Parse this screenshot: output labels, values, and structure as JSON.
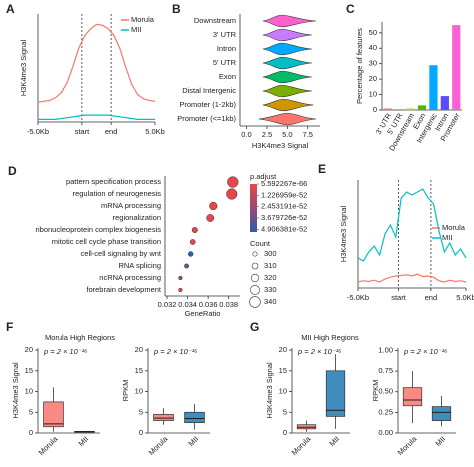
{
  "chart_data": [
    {
      "type": "line",
      "panel": "A",
      "ylabel": "H3K4me3 Signal",
      "x": [
        0,
        2,
        4,
        6,
        8,
        10,
        12,
        14,
        16,
        18,
        20,
        22,
        24,
        26,
        28,
        30,
        32,
        34,
        36,
        38,
        40
      ],
      "xlim": [
        0,
        40
      ],
      "xticks": [
        {
          "value": 0,
          "label": "-5.0Kb"
        },
        {
          "value": 15,
          "label": "start"
        },
        {
          "value": 25,
          "label": "end"
        },
        {
          "value": 40,
          "label": "5.0Kb"
        }
      ],
      "ylim": [
        0,
        12.5
      ],
      "legend": "upper right",
      "series": [
        {
          "name": "Morula",
          "color": "#f8766d",
          "values": [
            2.3,
            2.4,
            2.5,
            2.8,
            3.4,
            4.6,
            6.5,
            8.6,
            10,
            10.8,
            11.3,
            11.2,
            10.8,
            10,
            8.5,
            6.3,
            4.4,
            3.2,
            2.7,
            2.5,
            2.4
          ]
        },
        {
          "name": "MII",
          "color": "#00bfc4",
          "values": [
            0.3,
            0.3,
            0.3,
            0.3,
            0.4,
            0.5,
            0.6,
            0.7,
            0.8,
            0.8,
            0.8,
            0.8,
            0.8,
            0.7,
            0.6,
            0.5,
            0.4,
            0.3,
            0.3,
            0.3,
            0.3
          ]
        }
      ]
    },
    {
      "type": "violin",
      "panel": "B",
      "xlabel": "H3K4me3 Signal",
      "categories": [
        "Downstream",
        "3' UTR",
        "Intron",
        "5' UTR",
        "Exon",
        "Distal Intergenic",
        "Promoter (1-2kb)",
        "Promoter (<=1kb)"
      ],
      "mins": [
        2,
        2,
        2,
        2,
        2,
        2,
        2,
        1.5
      ],
      "medians": [
        4.3,
        4.3,
        4.3,
        4.4,
        4.4,
        4.3,
        4.5,
        5
      ],
      "maxs": [
        8.5,
        8,
        8,
        8,
        8,
        8,
        8.2,
        8.5
      ],
      "colors": [
        "#ff61cc",
        "#c77cff",
        "#00a9ff",
        "#00bfc4",
        "#00be67",
        "#7cae00",
        "#cd9600",
        "#f8766d"
      ],
      "xlim": [
        -0.8,
        9
      ],
      "xticks": [
        {
          "value": 0,
          "label": "0.0"
        },
        2.5,
        {
          "value": 5,
          "label": "5.0"
        },
        7.5
      ]
    },
    {
      "type": "bar",
      "panel": "C",
      "ylabel": "Percentage of features",
      "categories": [
        "3' UTR",
        "5' UTR",
        "Downstream",
        "Exon",
        "Intergenic",
        "Intron",
        "Promoter"
      ],
      "values": [
        1,
        0.5,
        1,
        3,
        29,
        9,
        55
      ],
      "colors": [
        "#f8766d",
        "#c49a00",
        "#e6c619",
        "#53b400",
        "#00a9ff",
        "#5b4cff",
        "#fb61d7"
      ],
      "ylim": [
        0,
        57
      ],
      "yticks": [
        0,
        10,
        20,
        30,
        40,
        50
      ]
    },
    {
      "type": "dot",
      "panel": "D",
      "xlabel": "GeneRatio",
      "categories": [
        "pattern specification process",
        "regulation of neurogenesis",
        "mRNA processing",
        "regionalization",
        "ribonucleoprotein complex biogenesis",
        "mitotic cell cycle phase transition",
        "cell-cell signaling by wnt",
        "RNA splicing",
        "ncRNA processing",
        "forebrain development"
      ],
      "values": [
        0.0384,
        0.0383,
        0.0365,
        0.0362,
        0.0347,
        0.0345,
        0.0343,
        0.0339,
        0.0333,
        0.0333
      ],
      "sizes": [
        340,
        339,
        321,
        318,
        307,
        305,
        303,
        300,
        296,
        296
      ],
      "colors": [
        "#e8474a",
        "#e8474a",
        "#e8474a",
        "#e8474a",
        "#e8474a",
        "#e8474a",
        "#2a5fa8",
        "#7a4f8e",
        "#9a4a74",
        "#e8474a"
      ],
      "xlim": [
        0.0318,
        0.0391
      ],
      "xticks": [
        0.032,
        0.034,
        0.036,
        0.038
      ],
      "color_title": "p.adjust",
      "clim": [
        0,
        5.2e-52
      ],
      "cticks": [
        5.592267e-66,
        1.226959e-52,
        2.453191e-52,
        3.679726e-52,
        4.906381e-52
      ],
      "size_title": "Count",
      "size_ticks": [
        300,
        310,
        320,
        330,
        340
      ]
    },
    {
      "type": "line",
      "panel": "E",
      "ylabel": "H3K4me3 Signal",
      "x": [
        0,
        2,
        4,
        6,
        8,
        10,
        12,
        14,
        16,
        18,
        20,
        22,
        24,
        26,
        28,
        30,
        32,
        34,
        36,
        38,
        40
      ],
      "xlim": [
        0,
        40
      ],
      "xticks": [
        {
          "value": 0,
          "label": "-5.0Kb"
        },
        {
          "value": 15,
          "label": "start"
        },
        {
          "value": 27,
          "label": "end"
        },
        {
          "value": 40,
          "label": "5.0Kb"
        }
      ],
      "ylim": [
        0,
        18
      ],
      "legend": "center right",
      "series": [
        {
          "name": "Morula",
          "color": "#f8766d",
          "values": [
            1,
            1.2,
            1.1,
            1.3,
            1,
            1.5,
            1.8,
            2,
            2.1,
            2.2,
            2,
            2.3,
            1.9,
            2,
            1.8,
            1.2,
            1,
            1.3,
            1.1,
            1.2,
            1
          ]
        },
        {
          "name": "MII",
          "color": "#00bfc4",
          "values": [
            5,
            4.5,
            6,
            7,
            5.5,
            9,
            10.5,
            8.5,
            15,
            16,
            15.5,
            16,
            16.5,
            15,
            14,
            9.5,
            6,
            7.5,
            5.5,
            6.5,
            5
          ]
        }
      ]
    },
    {
      "type": "box",
      "panel": "F",
      "title": "Morula High Regions",
      "ylabel": "H3K4me3 Signal",
      "annotation": "p = 2 × 10⁻¹⁶",
      "categories": [
        "Morula",
        "MII"
      ],
      "colors": [
        "#f8766d",
        "#1f78b4"
      ],
      "boxes": [
        {
          "min": 0.3,
          "q1": 1.5,
          "median": 2.2,
          "q3": 7.5,
          "max": 11
        },
        {
          "min": 0.1,
          "q1": 0.2,
          "median": 0.3,
          "q3": 0.4,
          "max": 0.5
        }
      ],
      "ylim": [
        0,
        20.5
      ],
      "yticks": [
        0,
        5,
        10,
        15,
        20
      ]
    },
    {
      "type": "box",
      "ylabel": "RPKM",
      "annotation": "p = 2 × 10⁻¹⁶",
      "categories": [
        "Morula",
        "MII"
      ],
      "colors": [
        "#f8766d",
        "#1f78b4"
      ],
      "boxes": [
        {
          "min": 2,
          "q1": 3,
          "median": 3.6,
          "q3": 4.5,
          "max": 6
        },
        {
          "min": 0.8,
          "q1": 2.5,
          "median": 3.5,
          "q3": 5,
          "max": 7
        }
      ],
      "ylim": [
        0,
        20.5
      ],
      "yticks": [
        0,
        5,
        10,
        15,
        20
      ]
    },
    {
      "type": "box",
      "panel": "G",
      "title": "MII High Regions",
      "ylabel": "H3K4me3 Signal",
      "annotation": "p = 2 × 10⁻¹⁶",
      "categories": [
        "Morula",
        "MII"
      ],
      "colors": [
        "#f8766d",
        "#1f78b4"
      ],
      "boxes": [
        {
          "min": 0.3,
          "q1": 1,
          "median": 1.4,
          "q3": 2,
          "max": 3
        },
        {
          "min": 1,
          "q1": 4,
          "median": 5.5,
          "q3": 15,
          "max": 19
        }
      ],
      "ylim": [
        0,
        20.5
      ],
      "yticks": [
        0,
        5,
        10,
        15,
        20
      ]
    },
    {
      "type": "box",
      "ylabel": "RPKM",
      "annotation": "p = 2 × 10⁻¹⁶",
      "categories": [
        "Morula",
        "MII"
      ],
      "colors": [
        "#f8766d",
        "#1f78b4"
      ],
      "boxes": [
        {
          "min": 0.12,
          "q1": 0.33,
          "median": 0.4,
          "q3": 0.55,
          "max": 0.75
        },
        {
          "min": 0.08,
          "q1": 0.15,
          "median": 0.25,
          "q3": 0.32,
          "max": 0.45
        }
      ],
      "ylim": [
        0,
        1.03
      ],
      "yticks": [
        {
          "value": 0,
          "label": "0.00"
        },
        0.25,
        {
          "value": 0.5,
          "label": "0.50"
        },
        0.75,
        {
          "value": 1,
          "label": "1.00"
        }
      ]
    }
  ]
}
